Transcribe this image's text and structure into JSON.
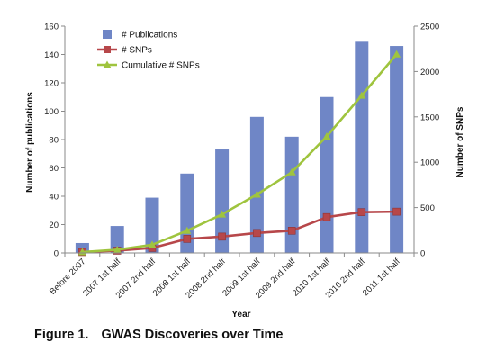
{
  "caption": {
    "figure_label": "Figure 1.",
    "title": "GWAS Discoveries over Time"
  },
  "chart_data": {
    "type": "bar",
    "categories": [
      "Before 2007",
      "2007 1st half",
      "2007 2nd half",
      "2008 1st half",
      "2008 2nd half",
      "2009 1st half",
      "2009 2nd half",
      "2010 1st half",
      "2010 2nd half",
      "2011 1st half"
    ],
    "series": [
      {
        "name": "# Publications",
        "type": "bar",
        "axis": "left",
        "color": "#6f86c6",
        "values": [
          7,
          19,
          39,
          56,
          73,
          96,
          82,
          110,
          149,
          146
        ]
      },
      {
        "name": "# SNPs",
        "type": "line",
        "axis": "right",
        "color": "#b7474a",
        "marker": "square",
        "values": [
          10,
          25,
          55,
          155,
          180,
          220,
          245,
          395,
          450,
          455
        ]
      },
      {
        "name": "Cumulative # SNPs",
        "type": "line",
        "axis": "right",
        "color": "#9fc43e",
        "marker": "triangle",
        "values": [
          10,
          35,
          90,
          245,
          425,
          645,
          890,
          1285,
          1735,
          2190
        ]
      }
    ],
    "xlabel": "Year",
    "ylabel": "Number of publications",
    "y2label": "Number of SNPs",
    "ylim": [
      0,
      160
    ],
    "y2lim": [
      0,
      2500
    ],
    "yticks": [
      0,
      20,
      40,
      60,
      80,
      100,
      120,
      140,
      160
    ],
    "y2ticks": [
      0,
      500,
      1000,
      1500,
      2000,
      2500
    ],
    "grid": false,
    "legend_position": "top-left"
  }
}
